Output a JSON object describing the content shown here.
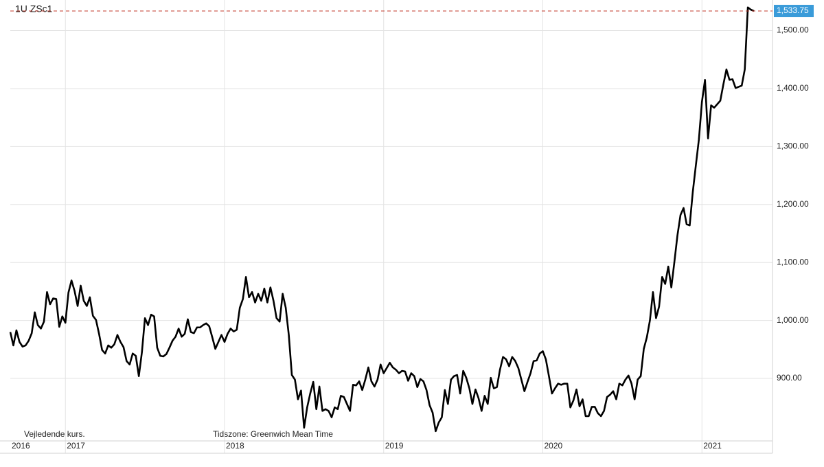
{
  "chart_data": {
    "type": "line",
    "title": "1U   ZSc1",
    "footnote": "Vejledende kurs.",
    "timezone_note": "Tidszone: Greenwich Mean Time",
    "last_label": "1,533.75",
    "categories": [
      "2016",
      null,
      null,
      null,
      null,
      null,
      null,
      null,
      null,
      null,
      null,
      null,
      null,
      null,
      null,
      null,
      null,
      null,
      "2017",
      null,
      null,
      null,
      null,
      null,
      null,
      null,
      null,
      null,
      null,
      null,
      null,
      null,
      null,
      null,
      null,
      null,
      null,
      null,
      null,
      null,
      null,
      null,
      null,
      null,
      null,
      null,
      null,
      null,
      null,
      null,
      null,
      null,
      null,
      null,
      null,
      null,
      null,
      null,
      null,
      null,
      null,
      null,
      null,
      null,
      null,
      null,
      null,
      null,
      null,
      null,
      "2018",
      null,
      null,
      null,
      null,
      null,
      null,
      null,
      null,
      null,
      null,
      null,
      null,
      null,
      null,
      null,
      null,
      null,
      null,
      null,
      null,
      null,
      null,
      null,
      null,
      null,
      null,
      null,
      null,
      null,
      null,
      null,
      null,
      null,
      null,
      null,
      null,
      null,
      null,
      null,
      null,
      null,
      null,
      null,
      null,
      null,
      null,
      null,
      null,
      null,
      null,
      null,
      "2019",
      null,
      null,
      null,
      null,
      null,
      null,
      null,
      null,
      null,
      null,
      null,
      null,
      null,
      null,
      null,
      null,
      null,
      null,
      null,
      null,
      null,
      null,
      null,
      null,
      null,
      null,
      null,
      null,
      null,
      null,
      null,
      null,
      null,
      null,
      null,
      null,
      null,
      null,
      null,
      null,
      null,
      null,
      null,
      null,
      null,
      null,
      null,
      null,
      null,
      null,
      null,
      "2020",
      null,
      null,
      null,
      null,
      null,
      null,
      null,
      null,
      null,
      null,
      null,
      null,
      null,
      null,
      null,
      null,
      null,
      null,
      null,
      null,
      null,
      null,
      null,
      null,
      null,
      null,
      null,
      null,
      null,
      null,
      null,
      null,
      null,
      null,
      null,
      null,
      null,
      null,
      null,
      null,
      null,
      null,
      null,
      null,
      null,
      null,
      null,
      null,
      null,
      null,
      null,
      "2021",
      null,
      null,
      null,
      null,
      null,
      null,
      null,
      null,
      null,
      null,
      null,
      null,
      null,
      null,
      null,
      null,
      null
    ],
    "series": [
      {
        "name": "ZSc1",
        "color": "#000000",
        "values": [
          980,
          957,
          983,
          963,
          955,
          957,
          965,
          978,
          1014,
          992,
          986,
          998,
          1049,
          1028,
          1038,
          1037,
          989,
          1007,
          996,
          1048,
          1069,
          1051,
          1025,
          1060,
          1034,
          1025,
          1040,
          1008,
          1001,
          977,
          949,
          943,
          957,
          953,
          959,
          975,
          963,
          954,
          930,
          924,
          943,
          939,
          904,
          945,
          1004,
          992,
          1010,
          1007,
          953,
          939,
          938,
          942,
          953,
          965,
          972,
          986,
          972,
          977,
          1002,
          980,
          978,
          988,
          988,
          992,
          995,
          990,
          971,
          951,
          963,
          975,
          963,
          977,
          986,
          981,
          984,
          1022,
          1037,
          1075,
          1040,
          1049,
          1031,
          1046,
          1034,
          1055,
          1031,
          1057,
          1034,
          1004,
          998,
          1046,
          1022,
          975,
          906,
          898,
          864,
          879,
          815,
          850,
          874,
          894,
          847,
          886,
          844,
          847,
          844,
          833,
          850,
          847,
          870,
          868,
          856,
          844,
          889,
          888,
          895,
          880,
          898,
          919,
          895,
          886,
          898,
          924,
          909,
          918,
          927,
          919,
          915,
          909,
          913,
          912,
          896,
          909,
          904,
          885,
          899,
          895,
          880,
          854,
          841,
          809,
          824,
          833,
          880,
          856,
          898,
          904,
          906,
          874,
          913,
          901,
          883,
          856,
          881,
          866,
          844,
          870,
          856,
          901,
          883,
          885,
          915,
          937,
          933,
          921,
          937,
          930,
          918,
          898,
          878,
          894,
          909,
          930,
          931,
          943,
          947,
          933,
          904,
          874,
          883,
          891,
          889,
          891,
          891,
          850,
          862,
          881,
          852,
          864,
          835,
          835,
          851,
          851,
          840,
          835,
          844,
          868,
          872,
          878,
          864,
          891,
          888,
          898,
          905,
          891,
          864,
          898,
          904,
          951,
          971,
          1000,
          1049,
          1004,
          1024,
          1075,
          1063,
          1093,
          1057,
          1101,
          1147,
          1182,
          1194,
          1166,
          1164,
          1221,
          1267,
          1312,
          1377,
          1415,
          1314,
          1371,
          1367,
          1373,
          1379,
          1407,
          1433,
          1415,
          1416,
          1401,
          1403,
          1405,
          1433,
          1540,
          1536,
          1533.75
        ]
      }
    ],
    "ylim": [
      797,
      1548
    ],
    "yticks": [
      {
        "value": 900,
        "label": "900.00"
      },
      {
        "value": 1000,
        "label": "1,000.00"
      },
      {
        "value": 1100,
        "label": "1,100.00"
      },
      {
        "value": 1200,
        "label": "1,200.00"
      },
      {
        "value": 1300,
        "label": "1,300.00"
      },
      {
        "value": 1400,
        "label": "1,400.00"
      },
      {
        "value": 1500,
        "label": "1,500.00"
      }
    ],
    "grid": true,
    "last_line_color": "#c0392b",
    "last_label_color": "#3a9bd9"
  }
}
